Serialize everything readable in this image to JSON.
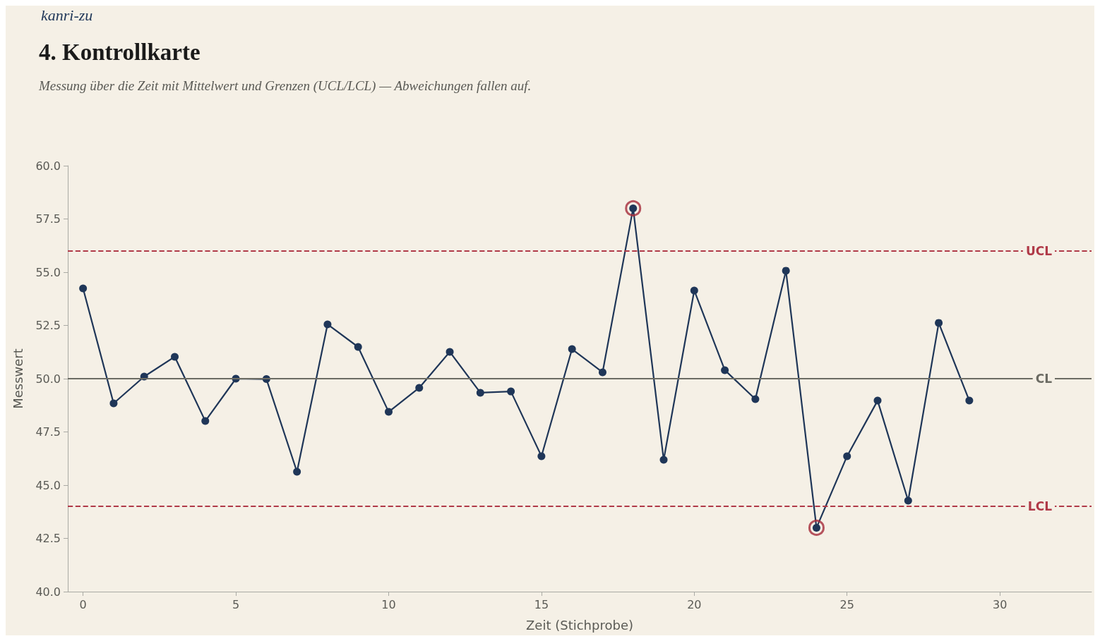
{
  "chart_data": {
    "type": "line",
    "title": "4. Kontrollkarte",
    "subtitle": "Messung über die Zeit mit Mittelwert und Grenzen (UCL/LCL) — Abweichungen fallen auf.",
    "annotations": [
      "kanri-zu"
    ],
    "xlabel": "Zeit (Stichprobe)",
    "ylabel": "Messwert",
    "x": [
      0,
      1,
      2,
      3,
      4,
      5,
      6,
      7,
      8,
      9,
      10,
      11,
      12,
      13,
      14,
      15,
      16,
      17,
      18,
      19,
      20,
      21,
      22,
      23,
      24,
      25,
      26,
      27,
      28,
      29
    ],
    "series": [
      {
        "color": "#1f3658",
        "marker": "circle",
        "line_style": "solid",
        "values": [
          54.24,
          48.84,
          50.1,
          51.03,
          48.01,
          50.0,
          49.98,
          45.63,
          52.55,
          51.49,
          48.44,
          49.57,
          51.26,
          49.34,
          49.4,
          46.36,
          51.39,
          50.3,
          58.0,
          46.19,
          54.14,
          50.4,
          49.04,
          55.07,
          43.0,
          46.36,
          48.97,
          44.27,
          52.62,
          48.97
        ]
      },
      {
        "type": "scatter",
        "color": "#a52a3a",
        "marker": "circle",
        "x": [
          18,
          24
        ],
        "values": [
          58.0,
          43.0
        ]
      }
    ],
    "xlim": [
      -0.5,
      33
    ],
    "xticks": [
      0,
      5,
      10,
      15,
      20,
      25,
      30
    ],
    "ylim": [
      40,
      60
    ],
    "yticks": [
      {
        "value": 40,
        "label": "40.0"
      },
      {
        "value": 42.5,
        "label": "42.5"
      },
      {
        "value": 45,
        "label": "45.0"
      },
      {
        "value": 47.5,
        "label": "47.5"
      },
      {
        "value": 50,
        "label": "50.0"
      },
      {
        "value": 52.5,
        "label": "52.5"
      },
      {
        "value": 55,
        "label": "55.0"
      },
      {
        "value": 57.5,
        "label": "57.5"
      },
      {
        "value": 60,
        "label": "60.0"
      }
    ],
    "ref_lines": [
      {
        "axis": "y",
        "value": 56,
        "label": "UCL",
        "color": "#b03a48",
        "line_style": "dashed"
      },
      {
        "axis": "y",
        "value": 50,
        "label": "CL",
        "color": "#6b6b63",
        "line_style": "solid"
      },
      {
        "axis": "y",
        "value": 44,
        "label": "LCL",
        "color": "#b03a48",
        "line_style": "dashed"
      }
    ],
    "grid": false
  }
}
